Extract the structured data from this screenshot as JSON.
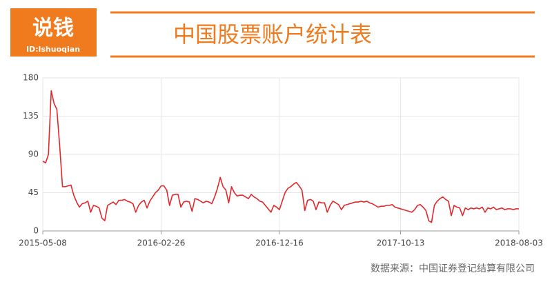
{
  "chart_data": {
    "type": "line",
    "logo_text": "说钱",
    "logo_id": "ID:lshuoqian",
    "title": "中国股票账户统计表",
    "source": "数据来源：中国证券登记结算有限公司",
    "categories": [
      "2015-05-08",
      null,
      null,
      null,
      null,
      null,
      null,
      null,
      null,
      null,
      null,
      null,
      null,
      null,
      null,
      null,
      null,
      null,
      null,
      null,
      null,
      null,
      null,
      null,
      null,
      null,
      null,
      null,
      null,
      null,
      null,
      null,
      null,
      null,
      null,
      null,
      null,
      null,
      null,
      null,
      null,
      null,
      "2016-02-26",
      null,
      null,
      null,
      null,
      null,
      null,
      null,
      null,
      null,
      null,
      null,
      null,
      null,
      null,
      null,
      null,
      null,
      null,
      null,
      null,
      null,
      null,
      null,
      null,
      null,
      null,
      null,
      null,
      null,
      null,
      null,
      null,
      null,
      null,
      null,
      null,
      null,
      null,
      null,
      null,
      null,
      "2016-12-16",
      null,
      null,
      null,
      null,
      null,
      null,
      null,
      null,
      null,
      null,
      null,
      null,
      null,
      null,
      null,
      null,
      null,
      null,
      null,
      null,
      null,
      null,
      null,
      null,
      null,
      null,
      null,
      null,
      null,
      null,
      null,
      null,
      null,
      null,
      null,
      null,
      null,
      null,
      null,
      null,
      null,
      null,
      "2017-10-13",
      null,
      null,
      null,
      null,
      null,
      null,
      null,
      null,
      null,
      null,
      null,
      null,
      null,
      null,
      null,
      null,
      null,
      null,
      null,
      null,
      null,
      null,
      null,
      null,
      null,
      null,
      null,
      null,
      null,
      null,
      null,
      null,
      null,
      null,
      null,
      null,
      null,
      null,
      null,
      null,
      null,
      "2018-08-03"
    ],
    "series": [
      {
        "color": "#e3262a",
        "values": [
          82,
          80,
          90,
          165,
          150,
          143,
          100,
          52,
          52,
          53,
          54,
          42,
          34,
          28,
          32,
          33,
          35,
          22,
          30,
          29,
          27,
          15,
          12,
          30,
          32,
          34,
          31,
          36,
          36,
          37,
          35,
          34,
          32,
          22,
          30,
          34,
          36,
          27,
          35,
          40,
          45,
          48,
          53,
          53,
          48,
          30,
          42,
          43,
          43,
          28,
          34,
          35,
          34,
          23,
          38,
          37,
          35,
          33,
          35,
          34,
          32,
          40,
          50,
          63,
          52,
          48,
          33,
          52,
          45,
          41,
          42,
          42,
          40,
          38,
          43,
          40,
          38,
          35,
          34,
          30,
          26,
          22,
          30,
          28,
          25,
          35,
          45,
          50,
          52,
          55,
          57,
          53,
          48,
          24,
          36,
          37,
          35,
          25,
          34,
          33,
          33,
          22,
          30,
          35,
          33,
          31,
          25,
          30,
          31,
          32,
          33,
          34,
          34,
          35,
          34,
          35,
          33,
          32,
          30,
          28,
          29,
          29,
          30,
          30,
          31,
          28,
          27,
          26,
          25,
          24,
          23,
          22,
          25,
          30,
          31,
          28,
          24,
          12,
          10,
          30,
          35,
          38,
          40,
          37,
          35,
          18,
          30,
          28,
          27,
          18,
          27,
          25,
          27,
          26,
          27,
          26,
          28,
          22,
          27,
          26,
          28,
          25,
          26,
          27,
          25,
          26,
          26,
          25,
          26,
          26
        ]
      }
    ],
    "ylim": [
      0,
      180
    ],
    "yticks": [
      0,
      45,
      90,
      135,
      180
    ],
    "grid": true
  }
}
